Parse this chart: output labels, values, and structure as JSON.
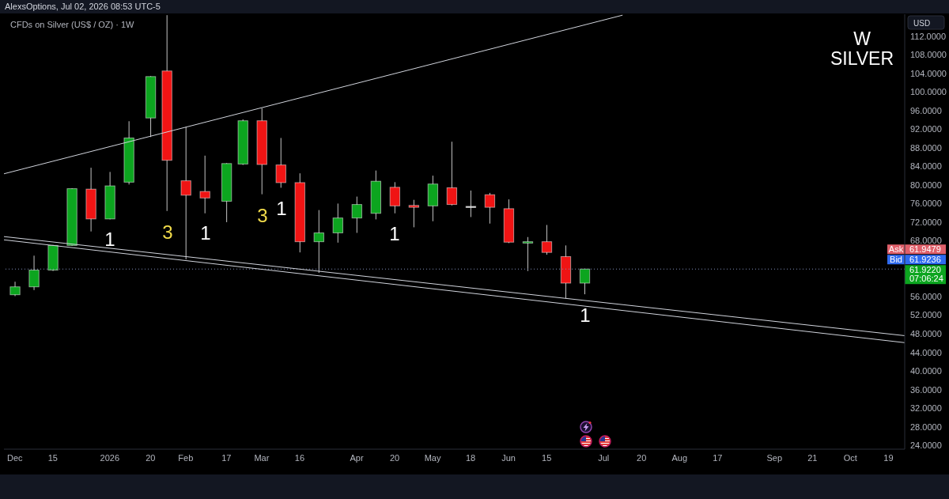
{
  "chart_data": {
    "type": "candlestick",
    "title": "CFDs on Silver (US$ / OZ) · 1W",
    "ylabel": "USD",
    "x": [
      "2025-12-01",
      "2025-12-08",
      "2025-12-15",
      "2025-12-22",
      "2025-12-29",
      "2026-01-05",
      "2026-01-12",
      "2026-01-20",
      "2026-01-26",
      "2026-02-02",
      "2026-02-09",
      "2026-02-17",
      "2026-02-23",
      "2026-03-02",
      "2026-03-09",
      "2026-03-16",
      "2026-03-23",
      "2026-03-30",
      "2026-04-06",
      "2026-04-13",
      "2026-04-20",
      "2026-04-27",
      "2026-05-04",
      "2026-05-11",
      "2026-05-18",
      "2026-05-25",
      "2026-06-01",
      "2026-06-08",
      "2026-06-15",
      "2026-06-22",
      "2026-06-29"
    ],
    "ohlc": [
      [
        56.4,
        59.2,
        56.1,
        58.1
      ],
      [
        58.1,
        64.8,
        57.4,
        61.7
      ],
      [
        61.7,
        67.1,
        61.5,
        67.0
      ],
      [
        67.0,
        79.3,
        66.9,
        79.2
      ],
      [
        79.1,
        83.7,
        70.0,
        72.7
      ],
      [
        72.7,
        82.8,
        72.6,
        79.8
      ],
      [
        80.6,
        93.7,
        80.1,
        90.1
      ],
      [
        94.4,
        103.4,
        90.3,
        103.3
      ],
      [
        104.5,
        116.5,
        74.4,
        85.3
      ],
      [
        80.9,
        92.5,
        64.0,
        77.8
      ],
      [
        78.6,
        86.3,
        73.9,
        77.2
      ],
      [
        76.5,
        84.7,
        72.0,
        84.6
      ],
      [
        84.5,
        94.1,
        84.3,
        93.8
      ],
      [
        93.8,
        96.5,
        78.0,
        84.4
      ],
      [
        84.3,
        90.1,
        79.4,
        80.5
      ],
      [
        80.5,
        82.5,
        65.5,
        67.8
      ],
      [
        67.8,
        74.6,
        61.1,
        69.7
      ],
      [
        69.7,
        76.0,
        67.6,
        72.9
      ],
      [
        72.9,
        77.5,
        69.7,
        75.8
      ],
      [
        73.9,
        83.1,
        72.6,
        80.8
      ],
      [
        79.5,
        80.6,
        73.9,
        75.5
      ],
      [
        75.6,
        76.8,
        70.9,
        75.2
      ],
      [
        75.5,
        82.0,
        72.2,
        80.2
      ],
      [
        79.4,
        89.3,
        75.6,
        75.8
      ],
      [
        75.4,
        78.8,
        73.1,
        75.4
      ],
      [
        77.9,
        78.3,
        71.7,
        75.2
      ],
      [
        74.9,
        76.9,
        67.5,
        67.7
      ],
      [
        67.5,
        68.8,
        61.5,
        67.8
      ],
      [
        67.8,
        71.4,
        65.0,
        65.5
      ],
      [
        64.6,
        67.0,
        55.6,
        58.9
      ],
      [
        58.9,
        62.0,
        56.5,
        61.922
      ]
    ],
    "colors": [
      "#0ca51f",
      "#0ca51f",
      "#0ca51f",
      "#0ca51f",
      "#f01414",
      "#0ca51f",
      "#0ca51f",
      "#0ca51f",
      "#f01414",
      "#f01414",
      "#f01414",
      "#0ca51f",
      "#0ca51f",
      "#f01414",
      "#f01414",
      "#f01414",
      "#0ca51f",
      "#0ca51f",
      "#0ca51f",
      "#0ca51f",
      "#f01414",
      "#f01414",
      "#0ca51f",
      "#f01414",
      "#c8c8c8",
      "#f01414",
      "#f01414",
      "#0ca51f",
      "#f01414",
      "#f01414",
      "#0ca51f"
    ],
    "series": [
      {
        "type": "line",
        "color": "#d1d4dc",
        "x": [
          "2025-11-27",
          "2026-07-13"
        ],
        "values": [
          82.4,
          116.5
        ]
      },
      {
        "type": "line",
        "color": "#d1d4dc",
        "x": [
          "2025-11-27",
          "2026-10-25"
        ],
        "values": [
          68.9,
          47.6
        ]
      },
      {
        "type": "line",
        "color": "#d1d4dc",
        "x": [
          "2025-11-27",
          "2026-10-25"
        ],
        "values": [
          68.2,
          46.1
        ]
      }
    ],
    "xlim": [
      "2025-11-27",
      "2026-10-25"
    ],
    "xticks": [
      {
        "value": "2025-12-01",
        "label": "Dec"
      },
      {
        "value": "2025-12-15",
        "label": "15"
      },
      {
        "value": "2026-01-05",
        "label": "2026"
      },
      {
        "value": "2026-01-20",
        "label": "20"
      },
      {
        "value": "2026-02-02",
        "label": "Feb"
      },
      {
        "value": "2026-02-17",
        "label": "17"
      },
      {
        "value": "2026-03-02",
        "label": "Mar"
      },
      {
        "value": "2026-03-16",
        "label": "16"
      },
      {
        "value": "2026-04-06",
        "label": "Apr"
      },
      {
        "value": "2026-04-20",
        "label": "20"
      },
      {
        "value": "2026-05-04",
        "label": "May"
      },
      {
        "value": "2026-05-18",
        "label": "18"
      },
      {
        "value": "2026-06-01",
        "label": "Jun"
      },
      {
        "value": "2026-06-15",
        "label": "15"
      },
      {
        "value": "2026-07-06",
        "label": "Jul"
      },
      {
        "value": "2026-07-20",
        "label": "20"
      },
      {
        "value": "2026-08-03",
        "label": "Aug"
      },
      {
        "value": "2026-08-17",
        "label": "17"
      },
      {
        "value": "2026-09-07",
        "label": "Sep"
      },
      {
        "value": "2026-09-21",
        "label": "21"
      },
      {
        "value": "2026-10-05",
        "label": "Oct"
      },
      {
        "value": "2026-10-19",
        "label": "19"
      }
    ],
    "ylim": [
      23.2,
      116.7
    ],
    "yticks": [
      {
        "value": 24,
        "label": "24.0000"
      },
      {
        "value": 28,
        "label": "28.0000"
      },
      {
        "value": 32,
        "label": "32.0000"
      },
      {
        "value": 36,
        "label": "36.0000"
      },
      {
        "value": 40,
        "label": "40.0000"
      },
      {
        "value": 44,
        "label": "44.0000"
      },
      {
        "value": 48,
        "label": "48.0000"
      },
      {
        "value": 52,
        "label": "52.0000"
      },
      {
        "value": 56,
        "label": "56.0000"
      },
      {
        "value": 68,
        "label": "68.0000"
      },
      {
        "value": 72,
        "label": "72.0000"
      },
      {
        "value": 76,
        "label": "76.0000"
      },
      {
        "value": 80,
        "label": "80.0000"
      },
      {
        "value": 84,
        "label": "84.0000"
      },
      {
        "value": 88,
        "label": "88.0000"
      },
      {
        "value": 92,
        "label": "92.0000"
      },
      {
        "value": 96,
        "label": "96.0000"
      },
      {
        "value": 100,
        "label": "100.0000"
      },
      {
        "value": 104,
        "label": "104.0000"
      },
      {
        "value": 108,
        "label": "108.0000"
      },
      {
        "value": 112,
        "label": "112.0000"
      }
    ],
    "ref_lines": [
      {
        "axis": "y",
        "value": 61.922,
        "label": "61.9220",
        "color": "#7f8bb8",
        "line_style": "dotted"
      }
    ],
    "annotations": [
      "AlexsOptions, Jul 02, 2026 08:53 UTC-5",
      "W",
      "SILVER",
      "Ask",
      "61.9479",
      "Bid",
      "61.9236",
      "07:06:24",
      "1",
      "3",
      "1",
      "3",
      "1",
      "1",
      "1"
    ]
  }
}
